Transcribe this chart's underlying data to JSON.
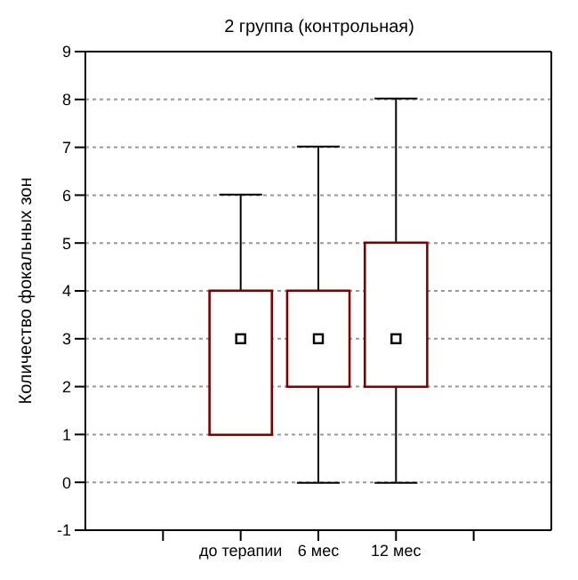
{
  "chart_data": {
    "type": "box",
    "title": "2 группа (контрольная)",
    "ylabel": "Количество фокальных зон",
    "categories": [
      null,
      "до терапии",
      "6 мес",
      "12 мес",
      null
    ],
    "boxes": [
      null,
      {
        "low": 1,
        "q1": 1,
        "median": 3,
        "q3": 4,
        "high": 6
      },
      {
        "low": 0,
        "q1": 2,
        "median": 3,
        "q3": 4,
        "high": 7
      },
      {
        "low": 0,
        "q1": 2,
        "median": 3,
        "q3": 5,
        "high": 8
      },
      null
    ],
    "color": "#800000",
    "ylim": [
      -1,
      9
    ],
    "yticks": [
      -1,
      0,
      1,
      2,
      3,
      4,
      5,
      6,
      7,
      8,
      9
    ],
    "grid": "y",
    "marker": "square"
  }
}
